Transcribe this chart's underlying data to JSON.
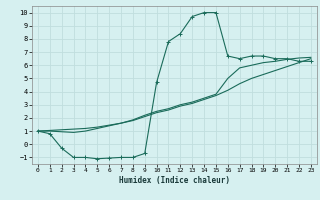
{
  "xlabel": "Humidex (Indice chaleur)",
  "bg_color": "#d6f0f0",
  "grid_color": "#c0dede",
  "line_color": "#1a6b5a",
  "xlim": [
    -0.5,
    23.5
  ],
  "ylim": [
    -1.5,
    10.5
  ],
  "xticks": [
    0,
    1,
    2,
    3,
    4,
    5,
    6,
    7,
    8,
    9,
    10,
    11,
    12,
    13,
    14,
    15,
    16,
    17,
    18,
    19,
    20,
    21,
    22,
    23
  ],
  "yticks": [
    -1,
    0,
    1,
    2,
    3,
    4,
    5,
    6,
    7,
    8,
    9,
    10
  ],
  "series1_x": [
    0,
    1,
    2,
    3,
    4,
    5,
    6,
    7,
    8,
    9,
    10,
    11,
    12,
    13,
    14,
    15,
    16,
    17,
    18,
    19,
    20,
    21,
    22,
    23
  ],
  "series1_y": [
    1.0,
    0.8,
    -0.3,
    -1.0,
    -1.0,
    -1.1,
    -1.05,
    -1.0,
    -1.0,
    -0.7,
    4.7,
    7.8,
    8.4,
    9.7,
    10.0,
    10.0,
    6.7,
    6.5,
    6.7,
    6.7,
    6.5,
    6.5,
    6.3,
    6.3
  ],
  "series2_x": [
    0,
    1,
    2,
    3,
    4,
    5,
    6,
    7,
    8,
    9,
    10,
    11,
    12,
    13,
    14,
    15,
    16,
    17,
    18,
    19,
    20,
    21,
    22,
    23
  ],
  "series2_y": [
    1.0,
    1.05,
    1.1,
    1.15,
    1.2,
    1.3,
    1.45,
    1.6,
    1.8,
    2.1,
    2.4,
    2.6,
    2.9,
    3.1,
    3.4,
    3.7,
    4.1,
    4.6,
    5.0,
    5.3,
    5.6,
    5.9,
    6.2,
    6.5
  ],
  "series3_x": [
    0,
    1,
    2,
    3,
    4,
    5,
    6,
    7,
    8,
    9,
    10,
    11,
    12,
    13,
    14,
    15,
    16,
    17,
    18,
    19,
    20,
    21,
    22,
    23
  ],
  "series3_y": [
    1.0,
    1.0,
    0.95,
    0.9,
    1.0,
    1.2,
    1.4,
    1.6,
    1.85,
    2.2,
    2.5,
    2.7,
    3.0,
    3.2,
    3.5,
    3.8,
    5.0,
    5.8,
    6.0,
    6.2,
    6.3,
    6.45,
    6.55,
    6.6
  ]
}
